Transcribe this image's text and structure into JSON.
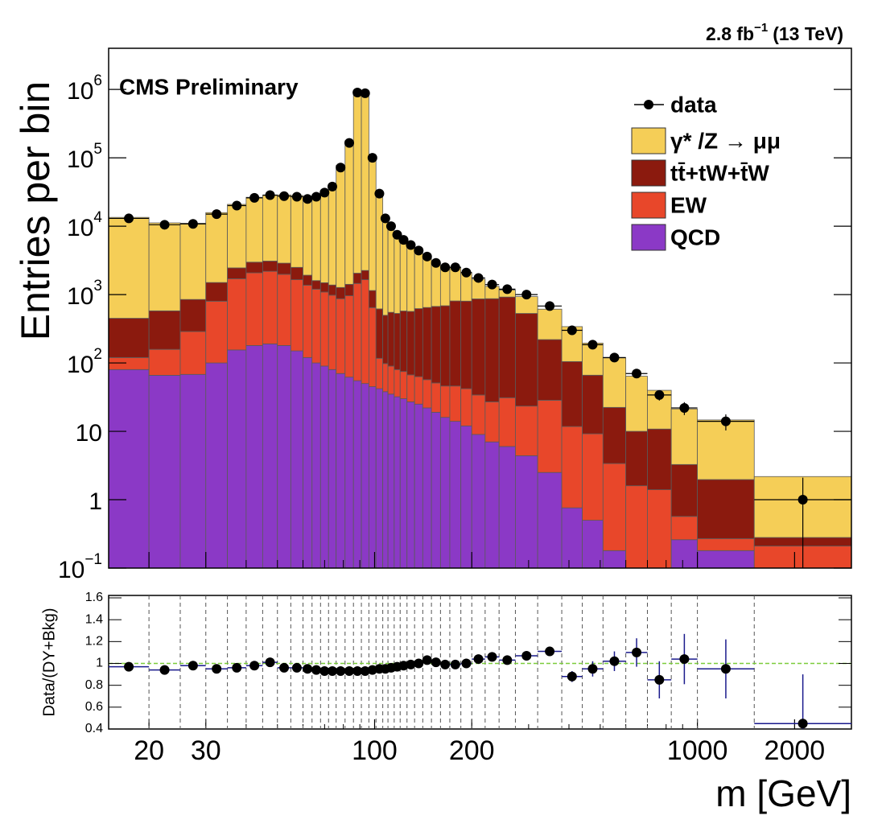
{
  "chart_data": {
    "type": "histogram",
    "title": "CMS Preliminary",
    "lumi": {
      "text": "2.8 fb",
      "exponent": "−1",
      "energy": "(13 TeV)"
    },
    "x_label": "m [GeV]",
    "y_label": "Entries per bin",
    "bins": [
      15,
      20,
      25,
      30,
      35,
      40,
      45,
      50,
      55,
      60,
      64,
      68,
      72,
      76,
      81,
      86,
      91,
      96,
      101,
      106,
      110,
      115,
      120,
      126,
      133,
      141,
      150,
      160,
      171,
      185,
      200,
      220,
      243,
      273,
      320,
      380,
      440,
      510,
      600,
      700,
      830,
      1000,
      1500,
      3000
    ],
    "xlim": [
      15,
      3000
    ],
    "xlog": true,
    "xticks": [
      20,
      30,
      100,
      200,
      1000,
      2000
    ],
    "xminor": [
      40,
      50,
      60,
      70,
      80,
      90,
      300,
      400,
      500,
      600,
      700,
      800,
      900
    ],
    "ylim": [
      0.1,
      4000000
    ],
    "ylog": true,
    "yticks": [
      {
        "value": 0.1,
        "label": "10",
        "exponent": "−1"
      },
      1,
      10,
      {
        "value": 100,
        "label": "10",
        "exponent": "2"
      },
      {
        "value": 1000,
        "label": "10",
        "exponent": "3"
      },
      {
        "value": 10000,
        "label": "10",
        "exponent": "4"
      },
      {
        "value": 100000,
        "label": "10",
        "exponent": "5"
      },
      {
        "value": 1000000,
        "label": "10",
        "exponent": "6"
      }
    ],
    "legend": "upper right",
    "data": {
      "name": "data",
      "color": "#000000",
      "values": [
        13000,
        10500,
        10800,
        15000,
        20000,
        26000,
        28500,
        27500,
        27000,
        25000,
        27000,
        31000,
        38000,
        72000,
        165000,
        900000,
        880000,
        100000,
        30000,
        13000,
        10000,
        7500,
        6300,
        5300,
        4400,
        3600,
        2900,
        2500,
        2500,
        2100,
        1750,
        1400,
        1200,
        1000,
        680,
        300,
        185,
        120,
        70,
        34,
        22,
        14,
        1
      ],
      "errors": [
        114,
        102,
        104,
        122,
        141,
        161,
        169,
        166,
        164,
        158,
        164,
        176,
        195,
        268,
        406,
        949,
        938,
        316,
        173,
        114,
        100,
        87,
        79,
        73,
        66,
        60,
        54,
        50,
        50,
        46,
        42,
        37,
        35,
        32,
        26,
        17,
        14,
        11,
        8.4,
        5.8,
        4.7,
        3.7,
        1.1
      ]
    },
    "series": [
      {
        "name": "γ* /Z → μμ",
        "color": "#f5ce57",
        "values": [
          13000,
          10600,
          10200,
          14300,
          18400,
          23500,
          25100,
          25800,
          25600,
          24400,
          27100,
          31800,
          39500,
          76100,
          176000,
          965000,
          944000,
          105000,
          31000,
          13200,
          9900,
          7200,
          5850,
          4780,
          3780,
          2850,
          2200,
          1840,
          1720,
          1300,
          816,
          450,
          245,
          405,
          392,
          235,
          129,
          96,
          54,
          29,
          18,
          12.7,
          1.9
        ]
      },
      {
        "name": "tt̄+tW+t̄W",
        "color": "#8b1a0e",
        "values": [
          330,
          420,
          560,
          700,
          750,
          900,
          900,
          900,
          850,
          550,
          400,
          400,
          400,
          400,
          450,
          600,
          600,
          500,
          500,
          400,
          460,
          450,
          500,
          500,
          560,
          590,
          620,
          640,
          760,
          760,
          830,
          843,
          889,
          506,
          191,
          93,
          57,
          19,
          8.4,
          9.4,
          2.7,
          1.7,
          0.07
        ]
      },
      {
        "name": "EW",
        "color": "#e8472a",
        "values": [
          40,
          92,
          220,
          700,
          1550,
          1900,
          2000,
          1800,
          1500,
          1250,
          1100,
          1000,
          900,
          800,
          900,
          1400,
          1600,
          600,
          75,
          60,
          55,
          48,
          45,
          40,
          38,
          35,
          32,
          30,
          32,
          30,
          25,
          20,
          25,
          19,
          26,
          11,
          8.7,
          3.2,
          1.6,
          1.4,
          0.31,
          0.09,
          0.21
        ]
      },
      {
        "name": "QCD",
        "color": "#8b39c6",
        "values": [
          80,
          66,
          68,
          100,
          155,
          180,
          190,
          180,
          150,
          120,
          100,
          90,
          80,
          70,
          62,
          55,
          50,
          45,
          42,
          38,
          35,
          32,
          30,
          27,
          25,
          22,
          19,
          16,
          14,
          12,
          9,
          7,
          6,
          4.4,
          2.5,
          0.76,
          0.5,
          0.18,
          0,
          0,
          0.26,
          0.18,
          0
        ]
      }
    ],
    "ratio": {
      "y_label": "Data/(DY+Bkg)",
      "ylim": [
        0.4,
        1.6
      ],
      "yticks": [
        0.4,
        0.6,
        0.8,
        1,
        1.2,
        1.4,
        1.6
      ],
      "color": "#1a1a8c",
      "reference": 1,
      "reference_color": "#7ccd3c",
      "values": [
        0.97,
        0.94,
        0.98,
        0.95,
        0.96,
        0.98,
        1.01,
        0.96,
        0.96,
        0.95,
        0.94,
        0.93,
        0.93,
        0.93,
        0.93,
        0.93,
        0.93,
        0.94,
        0.95,
        0.95,
        0.96,
        0.97,
        0.98,
        0.99,
        1.0,
        1.03,
        1.01,
        0.99,
        0.99,
        1.0,
        1.04,
        1.06,
        1.03,
        1.07,
        1.11,
        0.88,
        0.95,
        1.02,
        1.1,
        0.85,
        1.04,
        0.95,
        0.45
      ],
      "errors": [
        0.01,
        0.01,
        0.01,
        0.01,
        0.01,
        0.01,
        0.01,
        0.01,
        0.01,
        0.01,
        0.01,
        0.01,
        0.01,
        0.01,
        0.01,
        0.01,
        0.01,
        0.01,
        0.01,
        0.01,
        0.01,
        0.01,
        0.01,
        0.01,
        0.01,
        0.01,
        0.01,
        0.01,
        0.01,
        0.01,
        0.01,
        0.02,
        0.02,
        0.03,
        0.04,
        0.05,
        0.07,
        0.09,
        0.13,
        0.17,
        0.23,
        0.27,
        0.45
      ]
    }
  }
}
